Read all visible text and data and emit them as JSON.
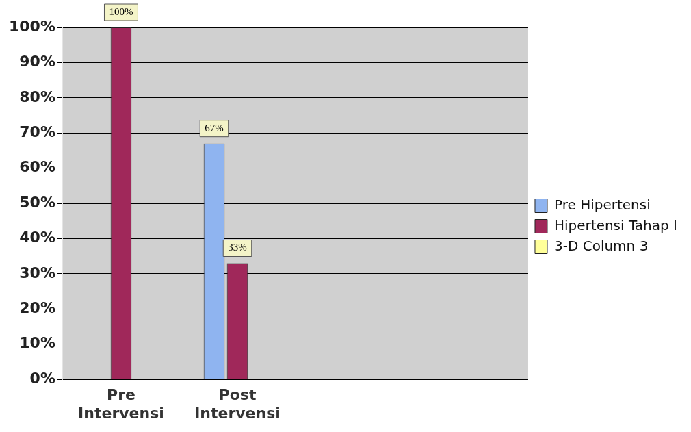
{
  "chart_data": {
    "type": "bar",
    "categories": [
      "Pre Intervensi",
      "Post Intervensi",
      null,
      null
    ],
    "series": [
      {
        "name": "Pre Hipertensi",
        "color": "#8fb4f0",
        "values": [
          null,
          67,
          null,
          null
        ],
        "value_labels": [
          null,
          "67%",
          null,
          null
        ]
      },
      {
        "name": "Hipertensi Tahap I",
        "color": "#a0285a",
        "values": [
          100,
          33,
          null,
          null
        ],
        "value_labels": [
          "100%",
          "33%",
          null,
          null
        ]
      },
      {
        "name": "3-D Column 3",
        "color": "#ffff99",
        "values": [
          null,
          null,
          null,
          null
        ]
      }
    ],
    "ylim": [
      0,
      100
    ],
    "yticks": [
      {
        "value": 0,
        "label": "0%"
      },
      {
        "value": 10,
        "label": "10%"
      },
      {
        "value": 20,
        "label": "20%"
      },
      {
        "value": 30,
        "label": "30%"
      },
      {
        "value": 40,
        "label": "40%"
      },
      {
        "value": 50,
        "label": "50%"
      },
      {
        "value": 60,
        "label": "60%"
      },
      {
        "value": 70,
        "label": "70%"
      },
      {
        "value": 80,
        "label": "80%"
      },
      {
        "value": 90,
        "label": "90%"
      },
      {
        "value": 100,
        "label": "100%"
      }
    ],
    "grid": "y",
    "legend": "right"
  }
}
